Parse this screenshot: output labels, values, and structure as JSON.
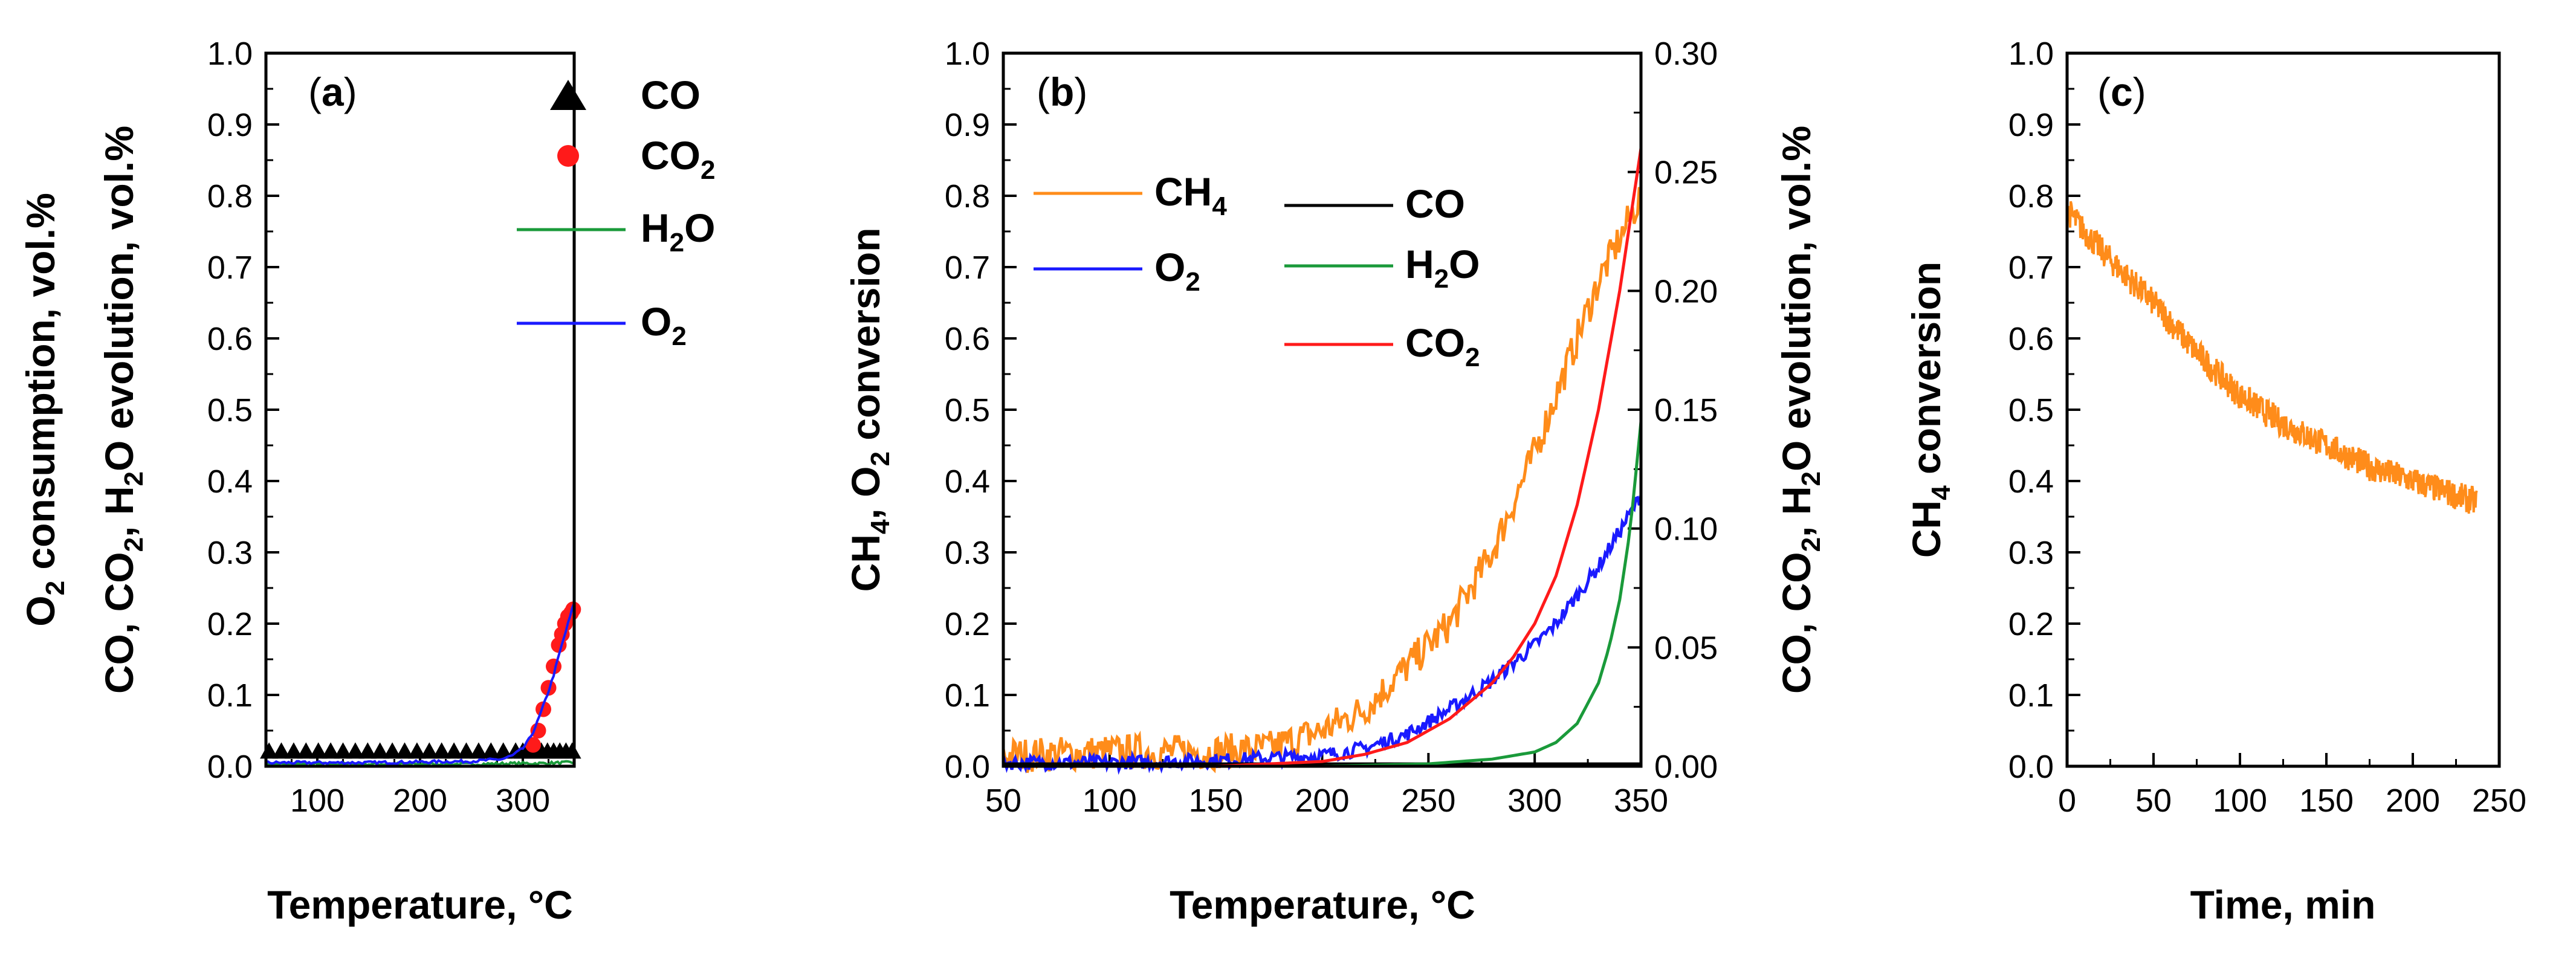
{
  "figure_name": "Temperature-programmed and isothermal methane oxidation results",
  "colors": {
    "CH4": "#ff8c1a",
    "O2": "#1a1aff",
    "CO": "#000000",
    "CO2": "#ff1a1a",
    "H2O": "#1a9a3a",
    "axis": "#000000"
  },
  "chart_data": [
    {
      "id": "a",
      "type": "line",
      "panel_label": "(a)",
      "panel_letter": "a",
      "xlabel": "Temperature, °C",
      "ylabel_line1": {
        "p1": "O",
        "s1": "2",
        "p2": " consumption, vol.%"
      },
      "ylabel_line2": {
        "p1": "CO, CO",
        "s1": "2",
        "p2": ", H",
        "s2": "2",
        "p3": "O evolution, vol.%"
      },
      "xlim": [
        50,
        350
      ],
      "ylim": [
        0,
        1.0
      ],
      "xticks": [
        100,
        200,
        300
      ],
      "xtick_labels": [
        "100",
        "200",
        "300"
      ],
      "yticks": [
        0.0,
        0.1,
        0.2,
        0.3,
        0.4,
        0.5,
        0.6,
        0.7,
        0.8,
        0.9,
        1.0
      ],
      "ytick_labels": [
        "0.0",
        "0.1",
        "0.2",
        "0.3",
        "0.4",
        "0.5",
        "0.6",
        "0.7",
        "0.8",
        "0.9",
        "1.0"
      ],
      "legend": [
        {
          "key": "CO",
          "marker": "triangle",
          "parts": [
            {
              "t": "CO"
            }
          ]
        },
        {
          "key": "CO2",
          "marker": "circle",
          "parts": [
            {
              "t": "CO"
            },
            {
              "t": "2",
              "sub": true
            }
          ]
        },
        {
          "key": "H2O",
          "marker": "line",
          "parts": [
            {
              "t": "H"
            },
            {
              "t": "2",
              "sub": true
            },
            {
              "t": "O"
            }
          ]
        },
        {
          "key": "O2",
          "marker": "line",
          "parts": [
            {
              "t": "O"
            },
            {
              "t": "2",
              "sub": true
            }
          ]
        }
      ],
      "series": [
        {
          "name": "CO",
          "style": "triangle",
          "x": [
            53,
            65,
            77,
            89,
            101,
            113,
            125,
            137,
            149,
            161,
            173,
            185,
            197,
            209,
            221,
            233,
            245,
            257,
            269,
            281,
            293,
            300,
            306,
            312,
            318,
            324,
            330,
            336,
            342,
            348
          ],
          "y": [
            0.02,
            0.02,
            0.02,
            0.02,
            0.02,
            0.02,
            0.02,
            0.02,
            0.02,
            0.02,
            0.02,
            0.02,
            0.02,
            0.02,
            0.02,
            0.02,
            0.02,
            0.02,
            0.02,
            0.02,
            0.02,
            0.02,
            0.02,
            0.02,
            0.02,
            0.02,
            0.02,
            0.02,
            0.02,
            0.02
          ]
        },
        {
          "name": "CO2",
          "style": "circle",
          "x": [
            310,
            315,
            320,
            325,
            330,
            335,
            338,
            341,
            344,
            347,
            349
          ],
          "y": [
            0.03,
            0.05,
            0.08,
            0.11,
            0.14,
            0.17,
            0.185,
            0.2,
            0.21,
            0.215,
            0.22
          ]
        },
        {
          "name": "H2O",
          "style": "line",
          "x": [
            50,
            100,
            150,
            200,
            250,
            300,
            320,
            340,
            350
          ],
          "y": [
            0.003,
            0.003,
            0.003,
            0.003,
            0.003,
            0.004,
            0.004,
            0.005,
            0.005
          ]
        },
        {
          "name": "O2",
          "style": "line",
          "x": [
            50,
            100,
            150,
            200,
            250,
            280,
            290,
            300,
            305,
            310,
            315,
            320,
            325,
            330,
            335,
            340,
            345,
            350
          ],
          "y": [
            0.005,
            0.005,
            0.005,
            0.006,
            0.007,
            0.01,
            0.015,
            0.025,
            0.035,
            0.048,
            0.065,
            0.085,
            0.105,
            0.128,
            0.155,
            0.18,
            0.205,
            0.23
          ]
        }
      ]
    },
    {
      "id": "b",
      "type": "line",
      "panel_label": "(b)",
      "panel_letter": "b",
      "xlabel": "Temperature, °C",
      "ylabel_left": {
        "p1": "CH",
        "s1": "4",
        "p2": ", O",
        "s2": "2",
        "p3": " conversion"
      },
      "ylabel_right": {
        "p1": "CO, CO",
        "s1": "2",
        "p2": ", H",
        "s2": "2",
        "p3": "O evolution, vol.%"
      },
      "xlim": [
        50,
        350
      ],
      "ylim_left": [
        0,
        1.0
      ],
      "ylim_right": [
        0,
        0.3
      ],
      "xticks": [
        50,
        100,
        150,
        200,
        250,
        300,
        350
      ],
      "xtick_labels": [
        "50",
        "100",
        "150",
        "200",
        "250",
        "300",
        "350"
      ],
      "yticks_left": [
        0.0,
        0.1,
        0.2,
        0.3,
        0.4,
        0.5,
        0.6,
        0.7,
        0.8,
        0.9,
        1.0
      ],
      "ytick_labels_left": [
        "0.0",
        "0.1",
        "0.2",
        "0.3",
        "0.4",
        "0.5",
        "0.6",
        "0.7",
        "0.8",
        "0.9",
        "1.0"
      ],
      "yticks_right": [
        0.0,
        0.05,
        0.1,
        0.15,
        0.2,
        0.25,
        0.3
      ],
      "ytick_labels_right": [
        "0.00",
        "0.05",
        "0.10",
        "0.15",
        "0.20",
        "0.25",
        "0.30"
      ],
      "legend": [
        {
          "key": "CH4",
          "parts": [
            {
              "t": "CH"
            },
            {
              "t": "4",
              "sub": true
            }
          ]
        },
        {
          "key": "O2",
          "parts": [
            {
              "t": "O"
            },
            {
              "t": "2",
              "sub": true
            }
          ]
        },
        {
          "key": "CO",
          "parts": [
            {
              "t": "CO"
            }
          ]
        },
        {
          "key": "H2O",
          "parts": [
            {
              "t": "H"
            },
            {
              "t": "2",
              "sub": true
            },
            {
              "t": "O"
            }
          ]
        },
        {
          "key": "CO2",
          "parts": [
            {
              "t": "CO"
            },
            {
              "t": "2",
              "sub": true
            }
          ]
        }
      ],
      "series": [
        {
          "name": "CH4",
          "axis": "left",
          "noise": 0.025,
          "x": [
            50,
            100,
            150,
            175,
            200,
            220,
            240,
            260,
            280,
            300,
            310,
            320,
            330,
            340,
            345,
            350
          ],
          "y": [
            0.015,
            0.02,
            0.02,
            0.025,
            0.05,
            0.08,
            0.14,
            0.2,
            0.3,
            0.44,
            0.52,
            0.6,
            0.68,
            0.74,
            0.77,
            0.8
          ]
        },
        {
          "name": "O2",
          "axis": "left",
          "noise": 0.01,
          "x": [
            50,
            100,
            150,
            200,
            220,
            240,
            260,
            280,
            300,
            310,
            320,
            330,
            340,
            350
          ],
          "y": [
            0.005,
            0.005,
            0.008,
            0.015,
            0.025,
            0.045,
            0.08,
            0.12,
            0.17,
            0.2,
            0.24,
            0.28,
            0.33,
            0.38
          ]
        },
        {
          "name": "CO",
          "axis": "right",
          "noise": 0,
          "x": [
            50,
            100,
            150,
            200,
            250,
            300,
            350
          ],
          "y": [
            0.001,
            0.001,
            0.001,
            0.001,
            0.001,
            0.001,
            0.001
          ]
        },
        {
          "name": "H2O",
          "axis": "right",
          "noise": 0,
          "x": [
            50,
            200,
            250,
            280,
            300,
            310,
            320,
            330,
            335,
            340,
            345,
            350
          ],
          "y": [
            0.0,
            0.0,
            0.001,
            0.003,
            0.006,
            0.01,
            0.018,
            0.035,
            0.05,
            0.07,
            0.1,
            0.145
          ]
        },
        {
          "name": "CO2",
          "axis": "right",
          "noise": 0,
          "x": [
            50,
            150,
            200,
            220,
            240,
            260,
            280,
            290,
            300,
            310,
            320,
            330,
            340,
            345,
            350
          ],
          "y": [
            0.0,
            0.0,
            0.002,
            0.005,
            0.01,
            0.02,
            0.035,
            0.046,
            0.06,
            0.08,
            0.11,
            0.15,
            0.2,
            0.23,
            0.26
          ]
        }
      ]
    },
    {
      "id": "c",
      "type": "line",
      "panel_label": "(c)",
      "panel_letter": "c",
      "xlabel": "Time, min",
      "ylabel": {
        "p1": "CH",
        "s1": "4",
        "p2": " conversion"
      },
      "xlim": [
        0,
        250
      ],
      "ylim": [
        0,
        1.0
      ],
      "xticks": [
        0,
        50,
        100,
        150,
        200,
        250
      ],
      "xtick_labels": [
        "0",
        "50",
        "100",
        "150",
        "200",
        "250"
      ],
      "yticks": [
        0.0,
        0.1,
        0.2,
        0.3,
        0.4,
        0.5,
        0.6,
        0.7,
        0.8,
        0.9,
        1.0
      ],
      "ytick_labels": [
        "0.0",
        "0.1",
        "0.2",
        "0.3",
        "0.4",
        "0.5",
        "0.6",
        "0.7",
        "0.8",
        "0.9",
        "1.0"
      ],
      "series": [
        {
          "name": "CH4",
          "noise": 0.02,
          "x": [
            0,
            10,
            25,
            50,
            75,
            100,
            125,
            150,
            175,
            200,
            225,
            237
          ],
          "y": [
            0.78,
            0.75,
            0.71,
            0.65,
            0.58,
            0.52,
            0.48,
            0.45,
            0.42,
            0.4,
            0.38,
            0.37
          ]
        }
      ]
    }
  ]
}
